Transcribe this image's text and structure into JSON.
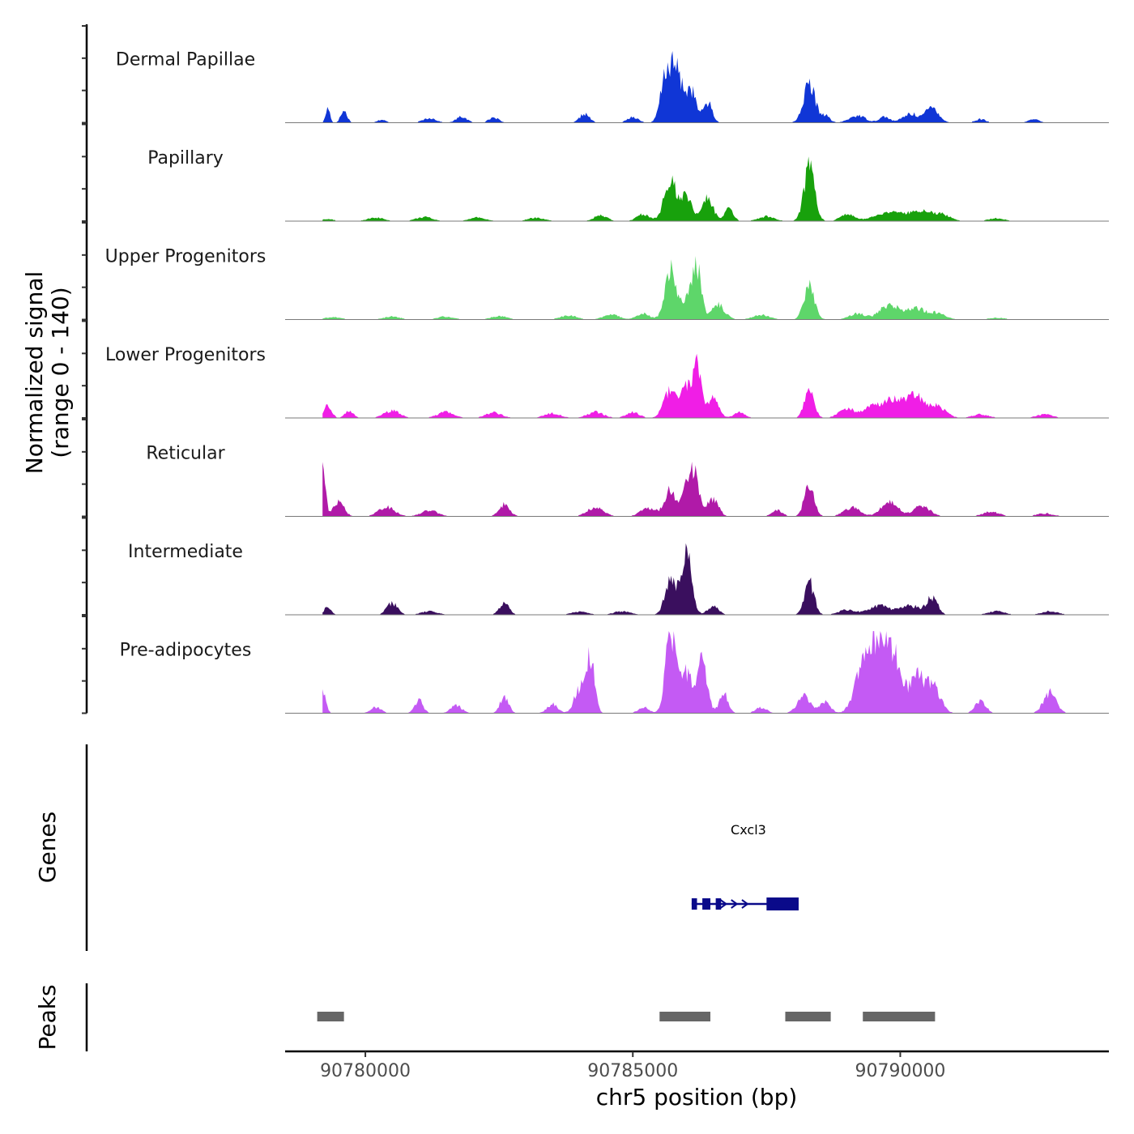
{
  "colors": {
    "Dermal Papillae": "#1036d6",
    "Papillary": "#18a10c",
    "Upper Progenitors": "#5ed66a",
    "Lower Progenitors": "#f01ee6",
    "Reticular": "#b01aa8",
    "Intermediate": "#3a0f5e",
    "Pre-adipocytes": "#c45af4",
    "gene": "#0a0a8a",
    "peak": "#666666"
  },
  "chart_data": {
    "type": "area",
    "title": "",
    "ylabel": "Normalized signal",
    "ylabel_range": "(range 0 - 140)",
    "genes_label": "Genes",
    "peaks_label": "Peaks",
    "xlabel": "chr5 position (bp)",
    "xlim": [
      90778500,
      90793900
    ],
    "ylim": [
      0,
      140
    ],
    "x_ticks": [
      90780000,
      90785000,
      90790000
    ],
    "x_tick_labels": [
      "90780000",
      "90785000",
      "90790000"
    ],
    "signal_start": 90779200,
    "signal_end": 90793200,
    "series": [
      {
        "name": "Dermal Papillae",
        "peaks": [
          [
            90779300,
            25,
            40
          ],
          [
            90779600,
            20,
            60
          ],
          [
            90780300,
            5,
            80
          ],
          [
            90781200,
            8,
            120
          ],
          [
            90781800,
            10,
            100
          ],
          [
            90782400,
            9,
            90
          ],
          [
            90784100,
            15,
            90
          ],
          [
            90785000,
            10,
            100
          ],
          [
            90785600,
            58,
            90
          ],
          [
            90785800,
            90,
            130
          ],
          [
            90786100,
            50,
            90
          ],
          [
            90786400,
            35,
            80
          ],
          [
            90788300,
            64,
            110
          ],
          [
            90788600,
            12,
            80
          ],
          [
            90789200,
            12,
            150
          ],
          [
            90789700,
            10,
            100
          ],
          [
            90790200,
            15,
            150
          ],
          [
            90790600,
            26,
            120
          ],
          [
            90791500,
            6,
            100
          ],
          [
            90792500,
            6,
            100
          ]
        ]
      },
      {
        "name": "Papillary",
        "peaks": [
          [
            90779300,
            4,
            100
          ],
          [
            90780200,
            6,
            150
          ],
          [
            90781100,
            7,
            150
          ],
          [
            90782100,
            6,
            150
          ],
          [
            90783200,
            6,
            150
          ],
          [
            90784400,
            10,
            120
          ],
          [
            90785200,
            12,
            120
          ],
          [
            90785700,
            70,
            110
          ],
          [
            90786000,
            45,
            100
          ],
          [
            90786400,
            40,
            100
          ],
          [
            90786800,
            20,
            80
          ],
          [
            90787500,
            8,
            150
          ],
          [
            90788300,
            90,
            100
          ],
          [
            90789000,
            12,
            120
          ],
          [
            90789800,
            14,
            300
          ],
          [
            90790400,
            16,
            200
          ],
          [
            90790800,
            10,
            150
          ],
          [
            90791800,
            5,
            150
          ]
        ]
      },
      {
        "name": "Upper Progenitors",
        "peaks": [
          [
            90779400,
            4,
            150
          ],
          [
            90780500,
            5,
            150
          ],
          [
            90781500,
            5,
            150
          ],
          [
            90782500,
            6,
            150
          ],
          [
            90783800,
            7,
            150
          ],
          [
            90784600,
            8,
            150
          ],
          [
            90785200,
            10,
            120
          ],
          [
            90785700,
            85,
            100
          ],
          [
            90786000,
            35,
            90
          ],
          [
            90786200,
            90,
            80
          ],
          [
            90786600,
            25,
            120
          ],
          [
            90787400,
            8,
            150
          ],
          [
            90788300,
            55,
            100
          ],
          [
            90789200,
            10,
            150
          ],
          [
            90789800,
            25,
            180
          ],
          [
            90790300,
            18,
            180
          ],
          [
            90790700,
            10,
            150
          ],
          [
            90791800,
            3,
            150
          ]
        ]
      },
      {
        "name": "Lower Progenitors",
        "peaks": [
          [
            90779300,
            22,
            70
          ],
          [
            90779700,
            12,
            80
          ],
          [
            90780500,
            12,
            150
          ],
          [
            90781500,
            10,
            150
          ],
          [
            90782400,
            9,
            150
          ],
          [
            90783500,
            8,
            150
          ],
          [
            90784300,
            10,
            150
          ],
          [
            90785000,
            10,
            120
          ],
          [
            90785700,
            45,
            120
          ],
          [
            90786000,
            55,
            100
          ],
          [
            90786200,
            100,
            70
          ],
          [
            90786500,
            40,
            100
          ],
          [
            90787000,
            10,
            100
          ],
          [
            90788300,
            45,
            90
          ],
          [
            90789000,
            15,
            150
          ],
          [
            90789500,
            20,
            180
          ],
          [
            90789900,
            30,
            180
          ],
          [
            90790300,
            36,
            150
          ],
          [
            90790700,
            20,
            150
          ],
          [
            90791500,
            6,
            150
          ],
          [
            90792700,
            6,
            150
          ]
        ]
      },
      {
        "name": "Reticular",
        "peaks": [
          [
            90779200,
            95,
            50
          ],
          [
            90779500,
            25,
            100
          ],
          [
            90780400,
            16,
            150
          ],
          [
            90781200,
            10,
            150
          ],
          [
            90782600,
            20,
            100
          ],
          [
            90784300,
            15,
            150
          ],
          [
            90785300,
            14,
            150
          ],
          [
            90785700,
            45,
            100
          ],
          [
            90786100,
            85,
            120
          ],
          [
            90786500,
            30,
            100
          ],
          [
            90787700,
            10,
            100
          ],
          [
            90788300,
            55,
            90
          ],
          [
            90789100,
            15,
            150
          ],
          [
            90789800,
            25,
            150
          ],
          [
            90790400,
            18,
            150
          ],
          [
            90791700,
            8,
            150
          ],
          [
            90792700,
            5,
            150
          ]
        ]
      },
      {
        "name": "Intermediate",
        "peaks": [
          [
            90779300,
            15,
            60
          ],
          [
            90780500,
            20,
            100
          ],
          [
            90781200,
            6,
            150
          ],
          [
            90782600,
            20,
            90
          ],
          [
            90784000,
            5,
            150
          ],
          [
            90784800,
            6,
            150
          ],
          [
            90785700,
            60,
            100
          ],
          [
            90786000,
            105,
            100
          ],
          [
            90786500,
            15,
            100
          ],
          [
            90788300,
            55,
            90
          ],
          [
            90789000,
            8,
            150
          ],
          [
            90789600,
            15,
            200
          ],
          [
            90790200,
            15,
            200
          ],
          [
            90790600,
            28,
            100
          ],
          [
            90791800,
            6,
            150
          ],
          [
            90792800,
            6,
            150
          ]
        ]
      },
      {
        "name": "Pre-adipocytes",
        "peaks": [
          [
            90779200,
            40,
            60
          ],
          [
            90780200,
            10,
            100
          ],
          [
            90781000,
            22,
            80
          ],
          [
            90781700,
            14,
            100
          ],
          [
            90782600,
            28,
            80
          ],
          [
            90783500,
            15,
            100
          ],
          [
            90784000,
            38,
            100
          ],
          [
            90784200,
            95,
            80
          ],
          [
            90785200,
            10,
            100
          ],
          [
            90785700,
            140,
            90
          ],
          [
            90786000,
            70,
            120
          ],
          [
            90786300,
            95,
            90
          ],
          [
            90786700,
            35,
            80
          ],
          [
            90787400,
            10,
            100
          ],
          [
            90788200,
            30,
            120
          ],
          [
            90788600,
            18,
            100
          ],
          [
            90789300,
            80,
            150
          ],
          [
            90789600,
            115,
            140
          ],
          [
            90789900,
            90,
            140
          ],
          [
            90790300,
            60,
            120
          ],
          [
            90790600,
            50,
            140
          ],
          [
            90791500,
            20,
            100
          ],
          [
            90792800,
            35,
            120
          ]
        ]
      }
    ],
    "genes": [
      {
        "name": "Cxcl3",
        "start": 90786100,
        "end": 90788100,
        "strand": "+",
        "exons": [
          [
            90786100,
            90786200
          ],
          [
            90786300,
            90786450
          ],
          [
            90786550,
            90786650
          ],
          [
            90787500,
            90788100
          ]
        ]
      }
    ],
    "peak_regions": [
      [
        90779100,
        90779600
      ],
      [
        90785500,
        90786450
      ],
      [
        90787850,
        90788700
      ],
      [
        90789300,
        90790650
      ]
    ]
  }
}
